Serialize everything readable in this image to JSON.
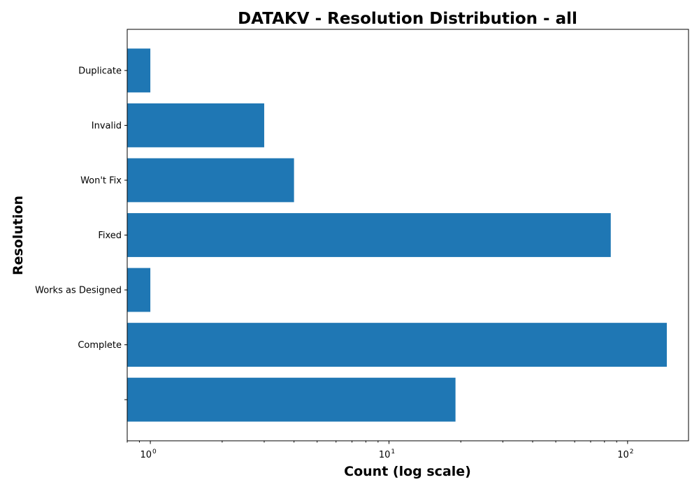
{
  "chart_data": {
    "type": "bar",
    "orientation": "horizontal",
    "title": "DATAKV - Resolution Distribution - all",
    "xlabel": "Count (log scale)",
    "ylabel": "Resolution",
    "x_scale": "log",
    "xlim": [
      0.8,
      180
    ],
    "x_major_ticks": [
      {
        "value": 1,
        "base": "10",
        "exp": "0"
      },
      {
        "value": 10,
        "base": "10",
        "exp": "1"
      },
      {
        "value": 100,
        "base": "10",
        "exp": "2"
      }
    ],
    "categories": [
      "Duplicate",
      "Invalid",
      "Won't Fix",
      "Fixed",
      "Works as Designed",
      "Complete",
      ""
    ],
    "values": [
      1,
      3,
      4,
      85,
      1,
      146,
      19
    ],
    "color": "#1f77b4",
    "grid": false,
    "legend": "none"
  }
}
